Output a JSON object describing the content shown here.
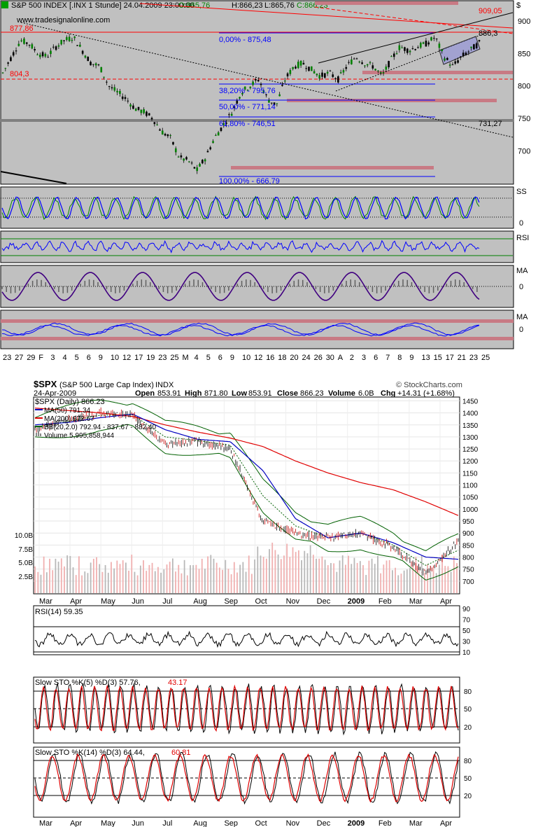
{
  "top_chart": {
    "header": {
      "title": "S&P 500 INDEX [.INX  1 Stunde] 24.04.2009 23:00:00",
      "open": "O:865,76",
      "high": "H:866,23",
      "low": "L:865,76",
      "close": "C:866,23",
      "watermark": "www.tradesignalonline.com"
    },
    "currency_label": "$",
    "price_ticks": [
      "900",
      "850",
      "800",
      "750",
      "700"
    ],
    "price_tick_values": [
      900,
      850,
      800,
      750,
      700
    ],
    "price_range": [
      650,
      930
    ],
    "levels": {
      "l909": "909,05",
      "l886": "886,3",
      "l877": "877,86",
      "l804": "804,3",
      "l731": "731,27"
    },
    "fib_labels": [
      "0,00% - 875,48",
      "38,20% - 795,76",
      "50,00% - 771,14",
      "61,80% - 746,51",
      "100,00% - 666,79"
    ],
    "fib_values": [
      875.48,
      795.76,
      771.14,
      746.51,
      666.79
    ],
    "panel_labels": {
      "sto": "SS",
      "sto_zero": "0",
      "rsi": "RSI",
      "ma1": "MA",
      "ma1_zero": "0",
      "ma2": "MA",
      "ma2_zero": "0"
    },
    "date_ticks": [
      "23",
      "27",
      "29",
      "F",
      "3",
      "4",
      "5",
      "6",
      "9",
      "10",
      "12",
      "17",
      "19",
      "23",
      "25",
      "M",
      "4",
      "5",
      "6",
      "9",
      "10",
      "12",
      "16",
      "18",
      "20",
      "24",
      "26",
      "30",
      "A",
      "2",
      "3",
      "6",
      "7",
      "8",
      "9",
      "13",
      "15",
      "17",
      "21",
      "23",
      "25"
    ],
    "colors": {
      "price_up": "#008000",
      "price_down": "#000000",
      "fib": "#0000ff",
      "resistance": "#ff0000",
      "band": "#c87a84",
      "panel_bg": "#c0c0c0"
    }
  },
  "bottom_chart": {
    "header": {
      "symbol": "$SPX",
      "name": "(S&P 500 Large Cap Index)",
      "exchange": "INDX",
      "date": "24-Apr-2009",
      "open_label": "Open",
      "open": "853.91",
      "high_label": "High",
      "high": "871.80",
      "low_label": "Low",
      "low": "853.91",
      "close_label": "Close",
      "close": "866.23",
      "volume_label": "Volume",
      "volume": "6.0B",
      "chg_label": "Chg",
      "chg": "+14.31 (+1.68%)",
      "logo": "© StockCharts.com"
    },
    "legend": {
      "spx": "$SPX (Daily) 866.23",
      "ma50": "MA(50) 791.34",
      "ma200": "MA(200) 972.67",
      "bb": "BB(20,2.0) 792.94 - 837.67 - 882.40",
      "volume": "Volume 5,995,858,944"
    },
    "price_ticks": [
      "1450",
      "1400",
      "1350",
      "1300",
      "1250",
      "1200",
      "1150",
      "1100",
      "1050",
      "1000",
      "950",
      "900",
      "850",
      "800",
      "750",
      "700"
    ],
    "price_tick_values": [
      1450,
      1400,
      1350,
      1300,
      1250,
      1200,
      1150,
      1100,
      1050,
      1000,
      950,
      900,
      850,
      800,
      750,
      700
    ],
    "volume_ticks": [
      "10.0B",
      "7.5B",
      "5.0B",
      "2.5B"
    ],
    "month_labels": [
      "Mar",
      "Apr",
      "May",
      "Jun",
      "Jul",
      "Aug",
      "Sep",
      "Oct",
      "Nov",
      "Dec",
      "2009",
      "Feb",
      "Mar",
      "Apr"
    ],
    "rsi": {
      "label": "RSI(14) 59.35",
      "ticks": [
        "90",
        "70",
        "50",
        "30",
        "10"
      ]
    },
    "sto5": {
      "label": "Slow STO %K(5) %D(3) 57.76,",
      "d_value": "43.17",
      "ticks": [
        "80",
        "50",
        "20"
      ]
    },
    "sto14": {
      "label": "Slow STO %K(14) %D(3) 64.44,",
      "d_value": "60.81",
      "ticks": [
        "80",
        "50",
        "20"
      ]
    },
    "colors": {
      "up": "#000000",
      "down": "#c00000",
      "ma50": "#0000c0",
      "ma200": "#e00000",
      "bb": "#006000",
      "sto_d": "#e00000"
    }
  },
  "chart_data": [
    {
      "type": "line",
      "title": "S&P 500 INDEX [.INX  1 Stunde] 24.04.2009 23:00:00",
      "ylim": [
        650,
        930
      ],
      "series": [
        {
          "values": [
            820,
            845,
            870,
            865,
            850,
            845,
            860,
            870,
            875,
            855,
            835,
            830,
            800,
            790,
            780,
            765,
            760,
            750,
            730,
            720,
            690,
            685,
            670,
            690,
            720,
            740,
            760,
            790,
            800,
            810,
            780,
            770,
            810,
            830,
            835,
            825,
            815,
            820,
            810,
            830,
            845,
            835,
            830,
            815,
            840,
            860,
            855,
            860,
            865,
            875,
            845,
            830,
            845,
            855,
            866
          ]
        }
      ],
      "annotations": [
        "909,05",
        "886,3",
        "877,86",
        "804,3",
        "731,27",
        "0,00% - 875,48",
        "38,20% - 795,76",
        "50,00% - 771,14",
        "61,80% - 746,51",
        "100,00% - 666,79"
      ]
    },
    {
      "type": "line",
      "title": "$SPX (S&P 500 Large Cap Index) INDX",
      "ylim": [
        650,
        1460
      ],
      "categories": [
        "Mar",
        "Apr",
        "May",
        "Jun",
        "Jul",
        "Aug",
        "Sep",
        "Oct",
        "Nov",
        "Dec",
        "2009",
        "Feb",
        "Mar",
        "Apr"
      ],
      "series": [
        {
          "name": "$SPX (Daily) 866.23",
          "values": [
            1330,
            1370,
            1400,
            1390,
            1270,
            1280,
            1250,
            950,
            900,
            880,
            900,
            840,
            730,
            866
          ]
        },
        {
          "name": "MA(50) 791.34",
          "values": [
            1350,
            1360,
            1380,
            1395,
            1330,
            1290,
            1280,
            1160,
            960,
            880,
            900,
            860,
            800,
            791
          ]
        },
        {
          "name": "MA(200) 972.67",
          "values": [
            1420,
            1410,
            1400,
            1385,
            1350,
            1320,
            1295,
            1260,
            1200,
            1150,
            1110,
            1080,
            1030,
            973
          ]
        }
      ]
    }
  ]
}
